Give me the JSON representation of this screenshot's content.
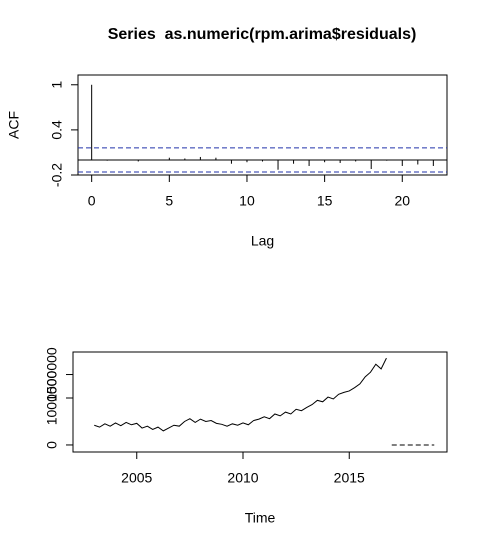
{
  "chart_data": [
    {
      "type": "acf",
      "title": "Series  as.numeric(rpm.arima$residuals)",
      "x_label": "Lag",
      "y_label": "ACF",
      "x": [
        0,
        1,
        2,
        3,
        4,
        5,
        6,
        7,
        8,
        9,
        10,
        11,
        12,
        13,
        14,
        15,
        16,
        17,
        18,
        19,
        20,
        21,
        22
      ],
      "values": [
        1.0,
        -0.01,
        0.0,
        -0.02,
        0.0,
        0.03,
        0.02,
        0.04,
        0.03,
        -0.05,
        -0.03,
        -0.02,
        -0.13,
        -0.05,
        -0.08,
        -0.03,
        -0.04,
        -0.02,
        -0.12,
        -0.01,
        -0.08,
        -0.06,
        -0.08
      ],
      "color": "#000000",
      "ci": [
        0.16,
        -0.16
      ],
      "ci_color": "#2233aa",
      "xlim": [
        -0.88,
        22.88
      ],
      "ylim": [
        -0.2,
        1.13
      ],
      "xticks": [
        0,
        5,
        10,
        15,
        20
      ],
      "yticks": [
        -0.2,
        0.4,
        1.0
      ]
    },
    {
      "type": "line",
      "x_label": "Time",
      "series": [
        {
          "color": "#000000",
          "x": [
            2003,
            2003.25,
            2003.5,
            2003.75,
            2004,
            2004.25,
            2004.5,
            2004.75,
            2005,
            2005.25,
            2005.5,
            2005.75,
            2006,
            2006.25,
            2006.5,
            2006.75,
            2007,
            2007.25,
            2007.5,
            2007.75,
            2008,
            2008.25,
            2008.5,
            2008.75,
            2009,
            2009.25,
            2009.5,
            2009.75,
            2010,
            2010.25,
            2010.5,
            2010.75,
            2011,
            2011.25,
            2011.5,
            2011.75,
            2012,
            2012.25,
            2012.5,
            2012.75,
            2013,
            2013.25,
            2013.5,
            2013.75,
            2014,
            2014.25,
            2014.5,
            2014.75,
            2015,
            2015.25,
            2015.5,
            2015.75,
            2016,
            2016.25,
            2016.5,
            2016.75
          ],
          "values": [
            420000,
            380000,
            450000,
            400000,
            470000,
            410000,
            480000,
            430000,
            460000,
            360000,
            400000,
            330000,
            380000,
            300000,
            360000,
            420000,
            400000,
            500000,
            560000,
            480000,
            550000,
            500000,
            520000,
            460000,
            440000,
            400000,
            450000,
            420000,
            470000,
            430000,
            520000,
            550000,
            600000,
            560000,
            660000,
            620000,
            700000,
            660000,
            760000,
            730000,
            800000,
            860000,
            950000,
            920000,
            1020000,
            980000,
            1080000,
            1120000,
            1150000,
            1220000,
            1300000,
            1450000,
            1550000,
            1720000,
            1620000,
            1850000
          ]
        },
        {
          "color": "#000000",
          "dashed": true,
          "x": [
            2017,
            2019
          ],
          "values": [
            0,
            0
          ]
        }
      ],
      "xlim": [
        2002.0,
        2019.6
      ],
      "ylim": [
        -150000,
        1980000
      ],
      "xticks": [
        2005,
        2010,
        2015
      ],
      "yticks": [
        0,
        1000000,
        1500000
      ]
    }
  ]
}
